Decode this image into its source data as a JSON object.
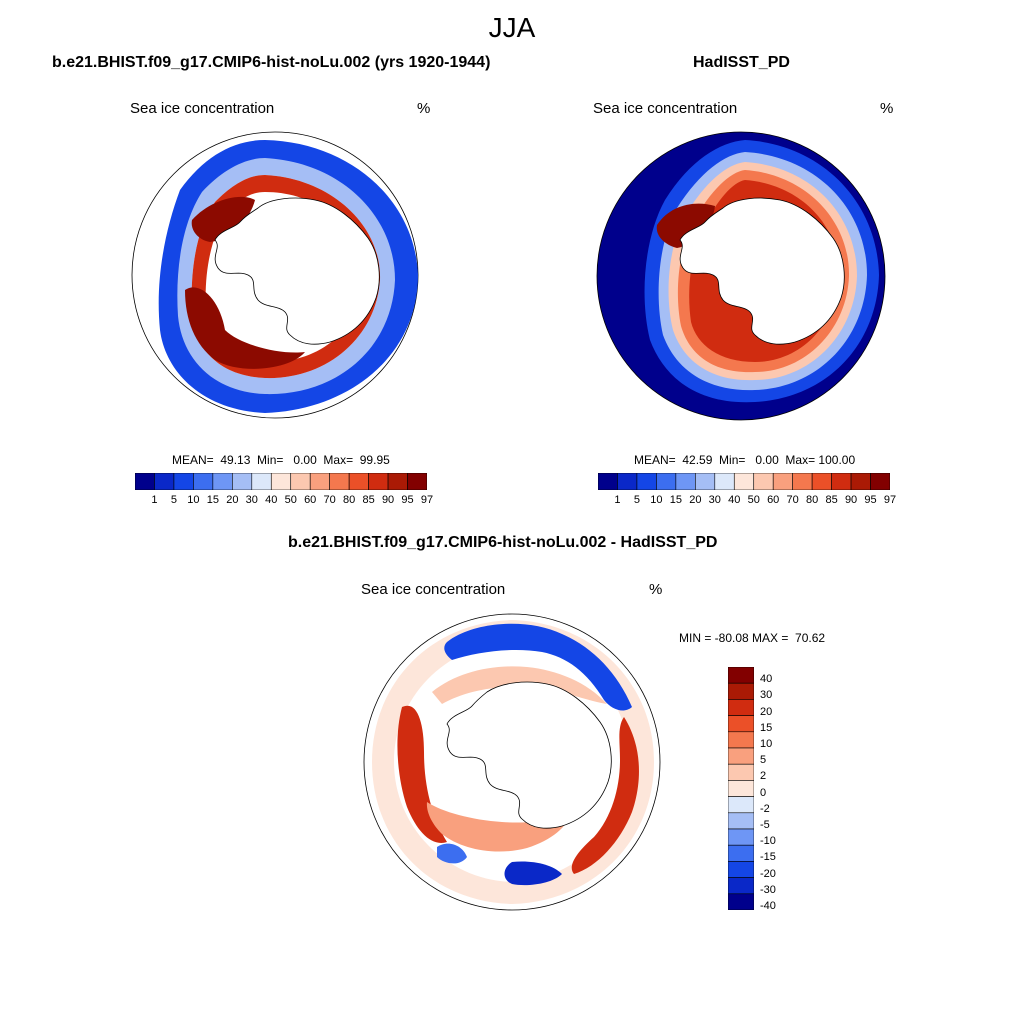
{
  "main_title": "JJA",
  "panels": [
    {
      "title": "b.e21.BHIST.f09_g17.CMIP6-hist-noLu.002 (yrs 1920-1944)",
      "variable": "Sea ice concentration",
      "units": "%",
      "stats": "MEAN=  49.13  Min=   0.00  Max=  99.95"
    },
    {
      "title": "HadISST_PD",
      "variable": "Sea ice concentration",
      "units": "%",
      "stats": "MEAN=  42.59  Min=   0.00  Max= 100.00"
    },
    {
      "title": "b.e21.BHIST.f09_g17.CMIP6-hist-noLu.002 - HadISST_PD",
      "variable": "Sea ice concentration",
      "units": "%",
      "stats": "MIN = -80.08 MAX =  70.62"
    }
  ],
  "colorbar_abs": {
    "labels": [
      "1",
      "5",
      "10",
      "15",
      "20",
      "30",
      "40",
      "50",
      "60",
      "70",
      "80",
      "85",
      "90",
      "95",
      "97"
    ],
    "colors": [
      "#00008c",
      "#0a28c8",
      "#1446e6",
      "#3c6ef0",
      "#6e96f5",
      "#a5bef5",
      "#dce8fa",
      "#fde6da",
      "#fcc8b0",
      "#f9a07e",
      "#f4784e",
      "#eb5028",
      "#d02c10",
      "#aa1a05",
      "#820000"
    ]
  },
  "colorbar_diff": {
    "labels": [
      "40",
      "30",
      "20",
      "15",
      "10",
      "5",
      "2",
      "0",
      "-2",
      "-5",
      "-10",
      "-15",
      "-20",
      "-30",
      "-40"
    ],
    "colors": [
      "#820000",
      "#aa1a05",
      "#d02c10",
      "#eb5028",
      "#f4784e",
      "#f9a07e",
      "#fcc8b0",
      "#fde6da",
      "#dce8fa",
      "#a5bef5",
      "#6e96f5",
      "#3c6ef0",
      "#1446e6",
      "#0a28c8",
      "#00008c"
    ]
  },
  "colors": {
    "deep_blue": "#00008c",
    "mid_blue": "#1446e6",
    "light_blue": "#a5bef5",
    "pale": "#fde6da",
    "light_red": "#f9a07e",
    "red": "#d02c10",
    "dark_red": "#8c0a00",
    "land": "#ffffff"
  }
}
